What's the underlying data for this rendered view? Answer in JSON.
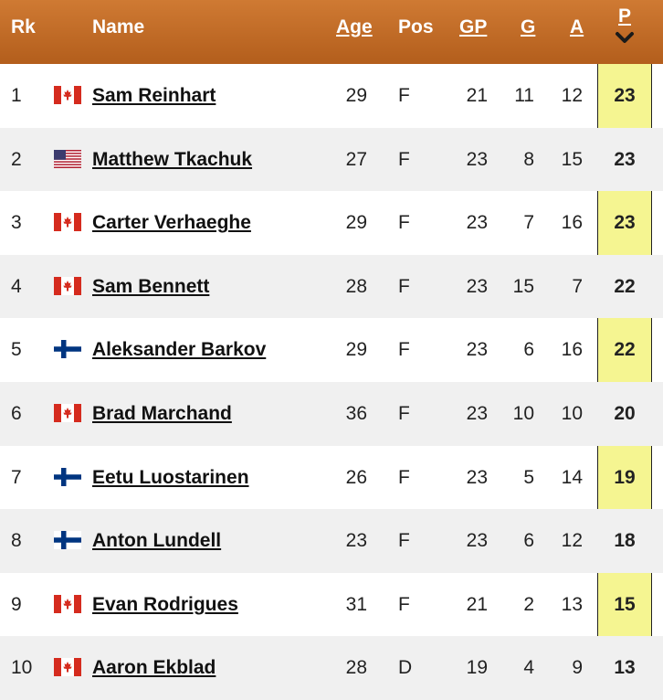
{
  "header": {
    "rk": "Rk",
    "name": "Name",
    "age": "Age",
    "pos": "Pos",
    "gp": "GP",
    "g": "G",
    "a": "A",
    "p": "P",
    "sort_icon": "chevron-down-icon"
  },
  "colors": {
    "header_bg": "#c26d2a",
    "header_text": "#ffffff",
    "sorted_column_bg": "#f5f591",
    "alt_row_bg": "#f0f0f0"
  },
  "rows": [
    {
      "rk": "1",
      "flag": "canada",
      "name": "Sam Reinhart",
      "age": "29",
      "pos": "F",
      "gp": "21",
      "g": "11",
      "a": "12",
      "p": "23"
    },
    {
      "rk": "2",
      "flag": "usa",
      "name": "Matthew Tkachuk",
      "age": "27",
      "pos": "F",
      "gp": "23",
      "g": "8",
      "a": "15",
      "p": "23"
    },
    {
      "rk": "3",
      "flag": "canada",
      "name": "Carter Verhaeghe",
      "age": "29",
      "pos": "F",
      "gp": "23",
      "g": "7",
      "a": "16",
      "p": "23"
    },
    {
      "rk": "4",
      "flag": "canada",
      "name": "Sam Bennett",
      "age": "28",
      "pos": "F",
      "gp": "23",
      "g": "15",
      "a": "7",
      "p": "22"
    },
    {
      "rk": "5",
      "flag": "finland",
      "name": "Aleksander Barkov",
      "age": "29",
      "pos": "F",
      "gp": "23",
      "g": "6",
      "a": "16",
      "p": "22"
    },
    {
      "rk": "6",
      "flag": "canada",
      "name": "Brad Marchand",
      "age": "36",
      "pos": "F",
      "gp": "23",
      "g": "10",
      "a": "10",
      "p": "20"
    },
    {
      "rk": "7",
      "flag": "finland",
      "name": "Eetu Luostarinen",
      "age": "26",
      "pos": "F",
      "gp": "23",
      "g": "5",
      "a": "14",
      "p": "19"
    },
    {
      "rk": "8",
      "flag": "finland",
      "name": "Anton Lundell",
      "age": "23",
      "pos": "F",
      "gp": "23",
      "g": "6",
      "a": "12",
      "p": "18"
    },
    {
      "rk": "9",
      "flag": "canada",
      "name": "Evan Rodrigues",
      "age": "31",
      "pos": "F",
      "gp": "21",
      "g": "2",
      "a": "13",
      "p": "15"
    },
    {
      "rk": "10",
      "flag": "canada",
      "name": "Aaron Ekblad",
      "age": "28",
      "pos": "D",
      "gp": "19",
      "g": "4",
      "a": "9",
      "p": "13"
    }
  ]
}
